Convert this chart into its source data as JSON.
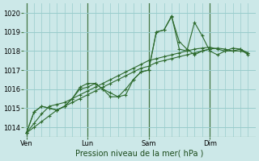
{
  "background_color": "#cce8e8",
  "grid_color": "#99cccc",
  "line_color": "#2d6a2d",
  "xlabel": "Pression niveau de la mer( hPa )",
  "ylim": [
    1013.5,
    1020.5
  ],
  "yticks": [
    1014,
    1015,
    1016,
    1017,
    1018,
    1019,
    1020
  ],
  "xtick_labels": [
    "Ven",
    "Lun",
    "Sam",
    "Dim"
  ],
  "xtick_positions": [
    0,
    24,
    48,
    72
  ],
  "xvlines": [
    0,
    24,
    48,
    72
  ],
  "xlim": [
    -1,
    90
  ],
  "minor_xtick_interval": 3,
  "series": [
    {
      "x": [
        0,
        3,
        6,
        9,
        12,
        15,
        18,
        21,
        24,
        27,
        30,
        33,
        36,
        39,
        42,
        45,
        48,
        51,
        54,
        57,
        60,
        63,
        66,
        69,
        72
      ],
      "y": [
        1013.7,
        1014.0,
        1014.3,
        1014.6,
        1014.9,
        1015.1,
        1015.3,
        1015.5,
        1015.7,
        1015.9,
        1016.1,
        1016.3,
        1016.5,
        1016.7,
        1016.9,
        1017.1,
        1017.2,
        1017.4,
        1017.5,
        1017.6,
        1017.7,
        1017.8,
        1017.9,
        1018.0,
        1018.1
      ]
    },
    {
      "x": [
        0,
        3,
        6,
        9,
        12,
        15,
        18,
        21,
        24,
        27,
        30,
        33,
        36,
        39,
        42,
        45,
        48,
        51,
        54,
        57,
        60,
        63,
        66,
        69,
        72,
        75,
        78,
        81,
        84,
        87
      ],
      "y": [
        1013.7,
        1014.2,
        1014.7,
        1015.1,
        1015.2,
        1015.3,
        1015.5,
        1015.7,
        1015.9,
        1016.1,
        1016.3,
        1016.5,
        1016.7,
        1016.9,
        1017.1,
        1017.3,
        1017.5,
        1017.6,
        1017.7,
        1017.8,
        1017.9,
        1018.0,
        1018.1,
        1018.15,
        1018.2,
        1018.1,
        1018.0,
        1018.0,
        1018.1,
        1017.9
      ]
    },
    {
      "x": [
        0,
        3,
        6,
        9,
        12,
        15,
        18,
        21,
        24,
        27,
        30,
        33,
        36,
        39,
        42,
        45,
        48,
        51,
        54,
        57,
        60,
        63,
        66,
        69,
        72,
        75,
        78,
        81,
        84,
        87
      ],
      "y": [
        1013.7,
        1014.8,
        1015.1,
        1015.0,
        1014.9,
        1015.1,
        1015.5,
        1016.0,
        1016.1,
        1016.3,
        1016.0,
        1015.8,
        1015.6,
        1015.7,
        1016.5,
        1016.9,
        1017.0,
        1019.0,
        1019.1,
        1019.8,
        1018.5,
        1018.1,
        1017.8,
        1018.0,
        1018.1,
        1018.15,
        1018.1,
        1018.0,
        1018.0,
        1017.9
      ]
    },
    {
      "x": [
        0,
        3,
        6,
        9,
        12,
        15,
        18,
        21,
        24,
        27,
        30,
        33,
        36,
        39,
        42,
        45,
        48,
        51,
        54,
        57,
        60,
        63,
        66,
        69,
        72,
        75,
        78,
        81,
        84,
        87
      ],
      "y": [
        1013.7,
        1014.8,
        1015.1,
        1015.0,
        1014.9,
        1015.1,
        1015.5,
        1016.1,
        1016.3,
        1016.3,
        1016.0,
        1015.6,
        1015.6,
        1016.0,
        1016.5,
        1016.9,
        1017.0,
        1019.0,
        1019.1,
        1019.85,
        1018.1,
        1018.0,
        1019.5,
        1018.8,
        1018.0,
        1017.8,
        1018.0,
        1018.15,
        1018.1,
        1017.8
      ]
    }
  ]
}
